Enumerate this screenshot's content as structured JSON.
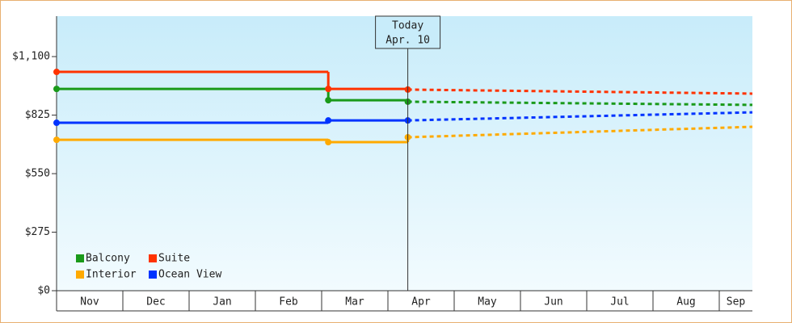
{
  "chart_data": {
    "type": "step-line",
    "categories": [
      "Nov",
      "Dec",
      "Jan",
      "Feb",
      "Mar",
      "Apr",
      "May",
      "Jun",
      "Jul",
      "Aug",
      "Sep"
    ],
    "xlim": [
      0,
      10.5
    ],
    "ylim": [
      0,
      1290
    ],
    "yticks": [
      {
        "value": 0,
        "label": "$0"
      },
      {
        "value": 275,
        "label": "$275"
      },
      {
        "value": 550,
        "label": "$550"
      },
      {
        "value": 825,
        "label": "$825"
      },
      {
        "value": 1100,
        "label": "$1,100"
      }
    ],
    "today": {
      "x": 5.3,
      "title": "Today",
      "date": "Apr. 10"
    },
    "series": [
      {
        "name": "Balcony",
        "color": "#1a9a1a",
        "x": [
          0,
          4.1,
          5.3,
          10.5
        ],
        "values": [
          948,
          895,
          888,
          873
        ]
      },
      {
        "name": "Suite",
        "color": "#ff3300",
        "x": [
          0,
          4.1,
          5.3,
          10.5
        ],
        "values": [
          1028,
          948,
          945,
          926
        ]
      },
      {
        "name": "Interior",
        "color": "#ffaa00",
        "x": [
          0,
          4.1,
          5.3,
          10.5
        ],
        "values": [
          709,
          698,
          721,
          770
        ]
      },
      {
        "name": "Ocean View",
        "color": "#0033ff",
        "x": [
          0,
          4.1,
          5.3,
          10.5
        ],
        "values": [
          789,
          800,
          800,
          838
        ]
      }
    ],
    "legend": "lower left"
  }
}
